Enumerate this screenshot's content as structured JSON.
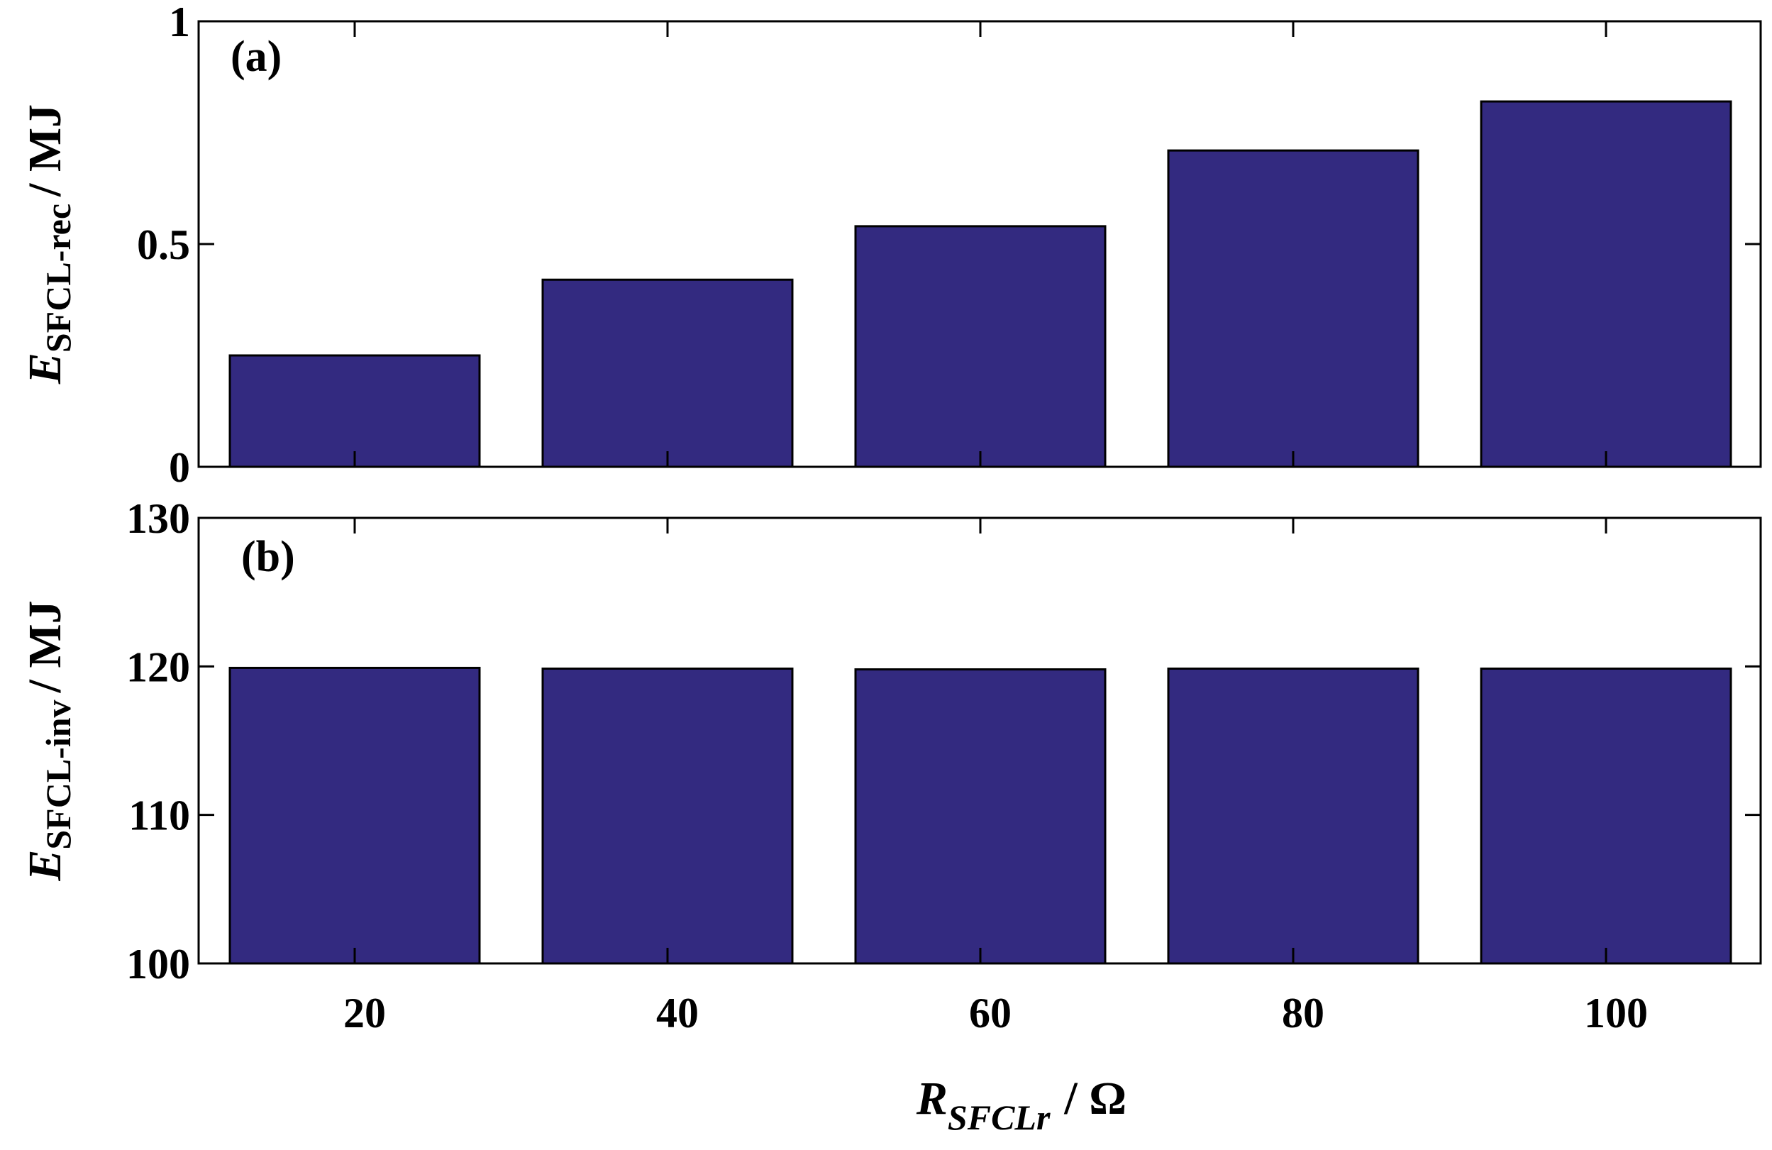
{
  "chart_data": [
    {
      "type": "bar",
      "panel_label": "(a)",
      "x": [
        20,
        40,
        60,
        80,
        100
      ],
      "values": [
        0.25,
        0.42,
        0.54,
        0.71,
        0.82
      ],
      "ylim": [
        0,
        1
      ],
      "yticks": [
        "0",
        "0.5",
        "1"
      ],
      "ylabel": {
        "main": "E",
        "sub": "SFCL-rec",
        "unit": "/ MJ"
      },
      "bar_color": "#332a80",
      "grid": false
    },
    {
      "type": "bar",
      "panel_label": "(b)",
      "x": [
        20,
        40,
        60,
        80,
        100
      ],
      "values": [
        119.9,
        119.85,
        119.8,
        119.85,
        119.85
      ],
      "ylim": [
        100,
        130
      ],
      "yticks": [
        "100",
        "110",
        "120",
        "130"
      ],
      "xticks": [
        "20",
        "40",
        "60",
        "80",
        "100"
      ],
      "ylabel": {
        "main": "E",
        "sub": "SFCL-inv",
        "unit": "/ MJ"
      },
      "xlabel": {
        "main": "R",
        "sub": "SFCLr",
        "unit": "/ Ω"
      },
      "bar_color": "#332a80",
      "grid": false
    }
  ]
}
